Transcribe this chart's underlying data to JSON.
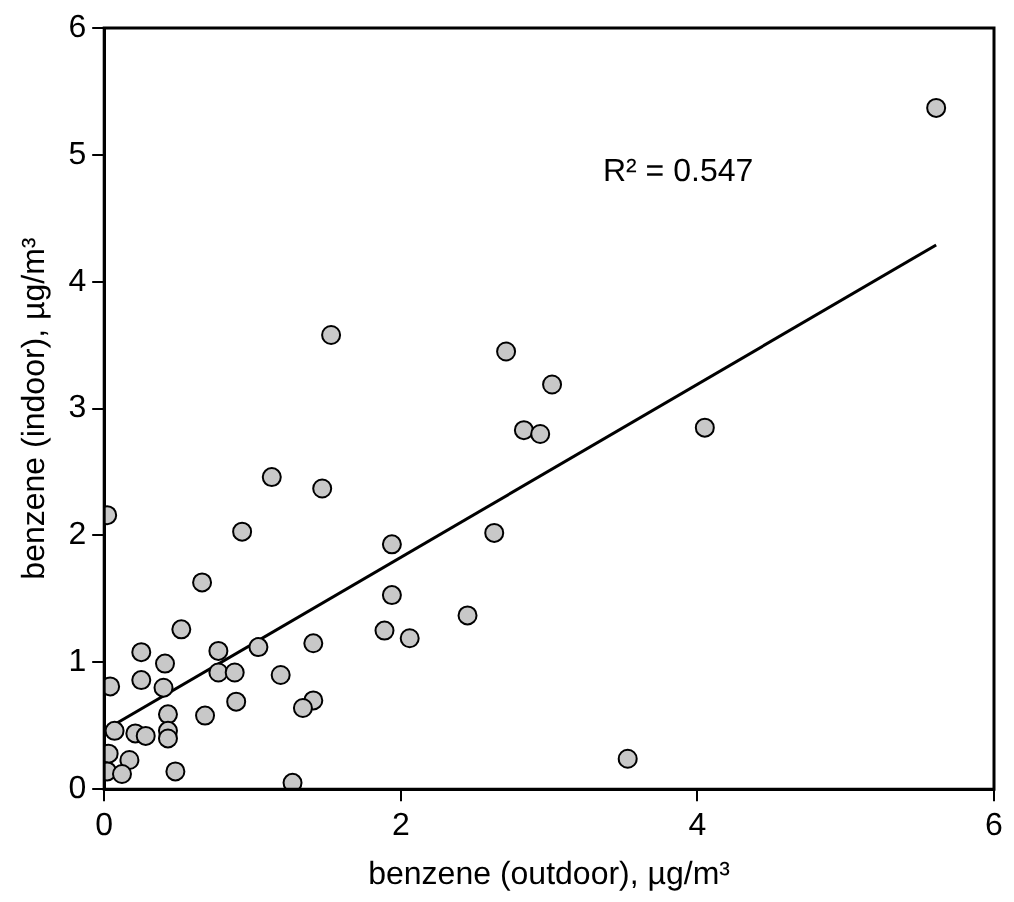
{
  "chart_data": {
    "type": "scatter",
    "xlabel": "benzene (outdoor), µg/m³",
    "ylabel": "benzene (indoor), µg/m³",
    "xlim": [
      0,
      6
    ],
    "xticks": [
      0,
      2,
      4,
      6
    ],
    "ylim": [
      0,
      6
    ],
    "yticks": [
      0,
      1,
      2,
      3,
      4,
      5,
      6
    ],
    "grid": false,
    "legend": false,
    "marker": "circle",
    "annotations": [
      "R² = 0.547"
    ],
    "series": [
      {
        "color": "#c8c8c8",
        "x": [
          5.61,
          2.71,
          3.02,
          2.83,
          2.94,
          4.05,
          2.63,
          2.45,
          3.53,
          1.53,
          0.02,
          1.13,
          1.47,
          0.93,
          1.94,
          0.66,
          1.94,
          0.52,
          1.89,
          2.06,
          0.25,
          0.41,
          0.77,
          1.04,
          1.41,
          0.04,
          0.25,
          0.4,
          0.77,
          0.88,
          1.19,
          0.89,
          1.41,
          1.34,
          0.68,
          0.43,
          0.43,
          0.43,
          0.07,
          0.21,
          0.28,
          0.03,
          0.17,
          0.02,
          0.12,
          0.48,
          1.27
        ],
        "values": [
          5.37,
          3.45,
          3.19,
          2.83,
          2.8,
          2.85,
          2.02,
          1.37,
          0.24,
          3.58,
          2.16,
          2.46,
          2.37,
          2.03,
          1.93,
          1.63,
          1.53,
          1.26,
          1.25,
          1.19,
          1.08,
          0.99,
          1.09,
          1.12,
          1.15,
          0.81,
          0.86,
          0.8,
          0.92,
          0.92,
          0.9,
          0.69,
          0.7,
          0.64,
          0.58,
          0.59,
          0.46,
          0.4,
          0.46,
          0.44,
          0.42,
          0.28,
          0.23,
          0.14,
          0.12,
          0.14,
          0.05
        ]
      },
      {
        "type": "line",
        "color": "#000000",
        "marker": "none",
        "x": [
          0.04,
          5.61
        ],
        "values": [
          0.49,
          4.29
        ]
      }
    ]
  }
}
